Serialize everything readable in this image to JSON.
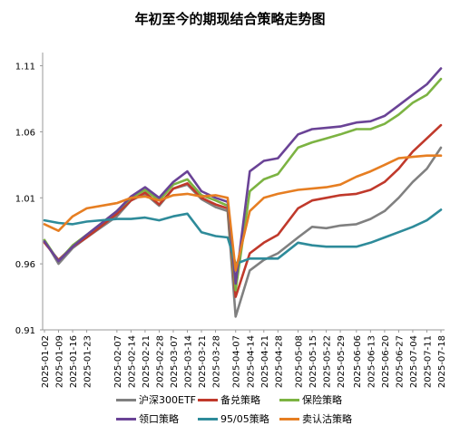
{
  "title": "年初至今的期现结合策略走势图",
  "chart_data": {
    "type": "line",
    "title": "年初至今的期现结合策略走势图",
    "xlabel": "",
    "ylabel": "",
    "ylim": [
      0.91,
      1.12
    ],
    "yticks": [
      "0.91",
      "0.96",
      "1.01",
      "1.06",
      "1.11"
    ],
    "xticks": [
      "2025-01-02",
      "2025-01-09",
      "2025-01-16",
      "2025-01-23",
      "2025-02-07",
      "2025-02-14",
      "2025-02-21",
      "2025-02-28",
      "2025-03-07",
      "2025-03-14",
      "2025-03-21",
      "2025-03-28",
      "2025-04-07",
      "2025-04-14",
      "2025-04-21",
      "2025-04-28",
      "2025-05-08",
      "2025-05-15",
      "2025-05-22",
      "2025-05-29",
      "2025-06-06",
      "2025-06-13",
      "2025-06-20",
      "2025-06-27",
      "2025-07-04",
      "2025-07-11",
      "2025-07-18"
    ],
    "grid": false,
    "legend_position": "bottom",
    "x": [
      "2025-01-02",
      "2025-01-09",
      "2025-01-16",
      "2025-01-23",
      "2025-02-07",
      "2025-02-14",
      "2025-02-21",
      "2025-02-28",
      "2025-03-07",
      "2025-03-14",
      "2025-03-21",
      "2025-03-28",
      "2025-04-03",
      "2025-04-07",
      "2025-04-14",
      "2025-04-21",
      "2025-04-28",
      "2025-05-08",
      "2025-05-15",
      "2025-05-22",
      "2025-05-29",
      "2025-06-06",
      "2025-06-13",
      "2025-06-20",
      "2025-06-27",
      "2025-07-04",
      "2025-07-11",
      "2025-07-18"
    ],
    "series": [
      {
        "name": "沪深300ETF",
        "color": "#808080",
        "values": [
          0.978,
          0.96,
          0.972,
          0.98,
          0.996,
          1.008,
          1.013,
          1.004,
          1.017,
          1.02,
          1.009,
          1.003,
          1.0,
          0.92,
          0.955,
          0.963,
          0.968,
          0.98,
          0.988,
          0.987,
          0.989,
          0.99,
          0.994,
          1.0,
          1.01,
          1.022,
          1.032,
          1.048
        ]
      },
      {
        "name": "备兑策略",
        "color": "#c0392b",
        "values": [
          0.976,
          0.963,
          0.973,
          0.98,
          0.998,
          1.008,
          1.014,
          1.005,
          1.017,
          1.021,
          1.01,
          1.005,
          1.002,
          0.935,
          0.968,
          0.976,
          0.982,
          1.002,
          1.008,
          1.01,
          1.012,
          1.013,
          1.016,
          1.022,
          1.032,
          1.045,
          1.055,
          1.065
        ]
      },
      {
        "name": "保险策略",
        "color": "#7cb342",
        "values": [
          0.978,
          0.962,
          0.974,
          0.982,
          1.0,
          1.01,
          1.016,
          1.008,
          1.02,
          1.024,
          1.012,
          1.008,
          1.004,
          0.94,
          1.015,
          1.024,
          1.028,
          1.048,
          1.052,
          1.055,
          1.058,
          1.062,
          1.062,
          1.066,
          1.073,
          1.082,
          1.088,
          1.1
        ]
      },
      {
        "name": "领口策略",
        "color": "#6a4396",
        "values": [
          0.977,
          0.962,
          0.973,
          0.982,
          1.0,
          1.011,
          1.018,
          1.01,
          1.022,
          1.03,
          1.015,
          1.01,
          1.007,
          0.945,
          1.03,
          1.038,
          1.04,
          1.058,
          1.062,
          1.063,
          1.064,
          1.067,
          1.068,
          1.072,
          1.08,
          1.088,
          1.096,
          1.108
        ]
      },
      {
        "name": "95/05策略",
        "color": "#2e8b9a",
        "values": [
          0.993,
          0.991,
          0.99,
          0.992,
          0.994,
          0.994,
          0.995,
          0.993,
          0.996,
          0.998,
          0.984,
          0.981,
          0.98,
          0.96,
          0.964,
          0.964,
          0.964,
          0.976,
          0.974,
          0.973,
          0.973,
          0.973,
          0.976,
          0.98,
          0.984,
          0.988,
          0.993,
          1.001
        ]
      },
      {
        "name": "卖认沽策略",
        "color": "#e67e22",
        "values": [
          0.99,
          0.985,
          0.996,
          1.002,
          1.006,
          1.01,
          1.011,
          1.008,
          1.012,
          1.013,
          1.011,
          1.012,
          1.01,
          0.955,
          1.0,
          1.01,
          1.013,
          1.016,
          1.017,
          1.018,
          1.02,
          1.026,
          1.03,
          1.035,
          1.04,
          1.041,
          1.042,
          1.042
        ]
      }
    ]
  }
}
